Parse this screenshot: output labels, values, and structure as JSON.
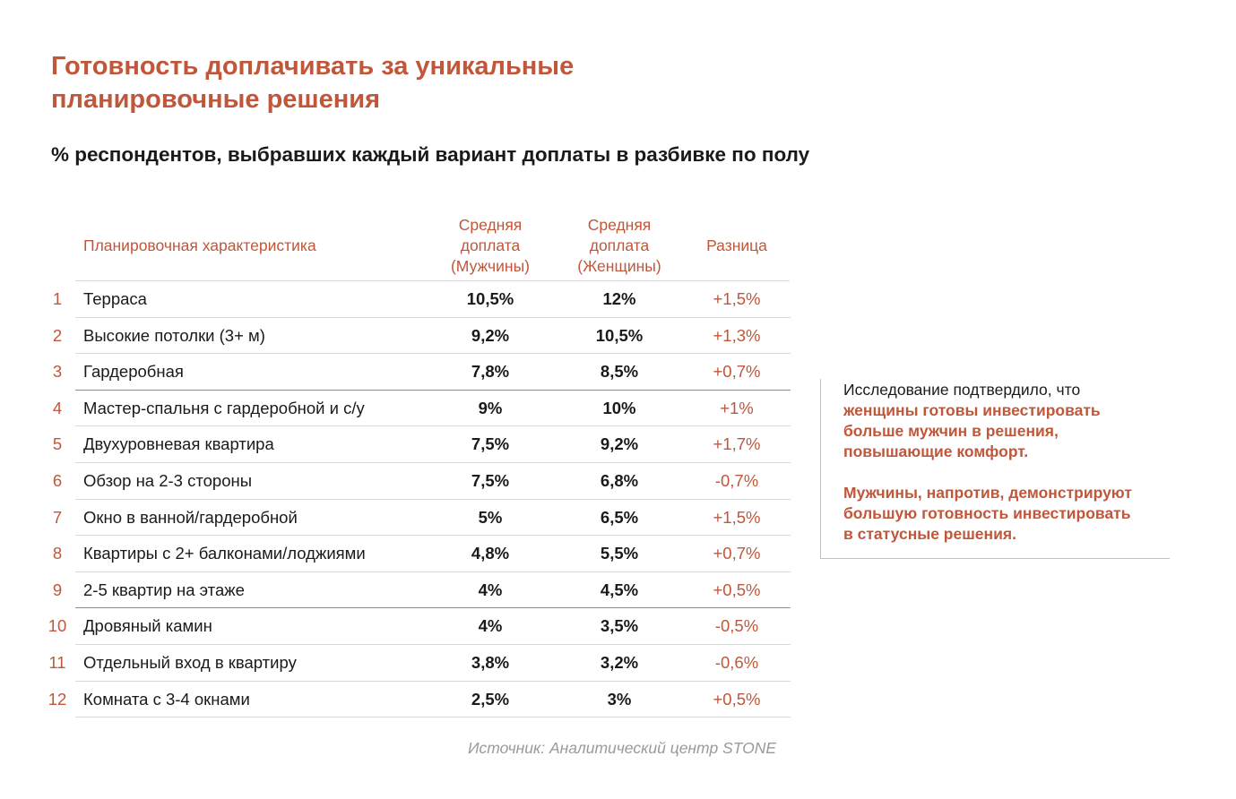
{
  "title_line1": "Готовность доплачивать за уникальные",
  "title_line2": "планировочные решения",
  "subtitle": "% респондентов, выбравших каждый вариант доплаты в разбивке по полу",
  "chart_data": {
    "type": "table",
    "columns": [
      "Планировочная характеристика",
      [
        "Средняя",
        "доплата",
        "(Мужчины)"
      ],
      [
        "Средняя",
        "доплата",
        "(Женщины)"
      ],
      "Разница"
    ],
    "rows": [
      {
        "num": "1",
        "name": "Терраса",
        "men": "10,5%",
        "women": "12%",
        "diff": "+1,5%"
      },
      {
        "num": "2",
        "name": "Высокие потолки (3+ м)",
        "men": "9,2%",
        "women": "10,5%",
        "diff": "+1,3%"
      },
      {
        "num": "3",
        "name": "Гардеробная",
        "men": "7,8%",
        "women": "8,5%",
        "diff": "+0,7%"
      },
      {
        "num": "4",
        "name": "Мастер-спальня с гардеробной и с/у",
        "men": "9%",
        "women": "10%",
        "diff": "+1%"
      },
      {
        "num": "5",
        "name": "Двухуровневая квартира",
        "men": "7,5%",
        "women": "9,2%",
        "diff": "+1,7%"
      },
      {
        "num": "6",
        "name": "Обзор на 2-3 стороны",
        "men": "7,5%",
        "women": "6,8%",
        "diff": "-0,7%"
      },
      {
        "num": "7",
        "name": "Окно в ванной/гардеробной",
        "men": "5%",
        "women": "6,5%",
        "diff": "+1,5%"
      },
      {
        "num": "8",
        "name": "Квартиры с 2+ балконами/лоджиями",
        "men": "4,8%",
        "women": "5,5%",
        "diff": "+0,7%"
      },
      {
        "num": "9",
        "name": "2-5 квартир на этаже",
        "men": "4%",
        "women": "4,5%",
        "diff": "+0,5%"
      },
      {
        "num": "10",
        "name": "Дровяный камин",
        "men": "4%",
        "women": "3,5%",
        "diff": "-0,5%"
      },
      {
        "num": "11",
        "name": "Отдельный вход в квартиру",
        "men": "3,8%",
        "women": "3,2%",
        "diff": "-0,6%"
      },
      {
        "num": "12",
        "name": "Комната с 3-4 окнами",
        "men": "2,5%",
        "women": "3%",
        "diff": "+0,5%"
      }
    ]
  },
  "note": {
    "intro": "Исследование подтвердило, что",
    "highlight": [
      "женщины готовы инвестировать",
      "больше мужчин в решения,",
      "повышающие комфорт."
    ],
    "second": [
      "Мужчины, напротив, демонстрируют",
      "большую готовность инвестировать",
      "в статусные решения."
    ]
  },
  "source": "Источник: Аналитический центр STONE",
  "colors": {
    "accent": "#c0573a",
    "text": "#1a1a1a",
    "rule_light": "#d9d9d9",
    "rule_dark": "#8c8c8c",
    "source": "#9a9a9a"
  }
}
